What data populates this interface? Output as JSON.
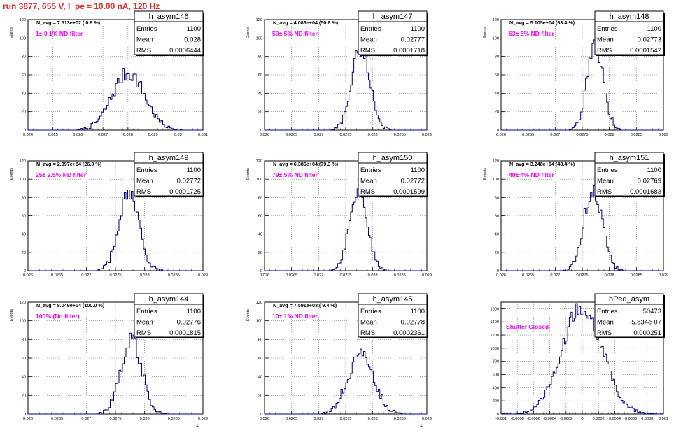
{
  "header": {
    "run_title": "run 3877,   655 V, I_pe ≈ 10.00 nA, 120 Hz"
  },
  "colors": {
    "histogram_line": "#000080",
    "annotation": "#ff00ff",
    "title": "#e8262a",
    "grid": "#000000"
  },
  "stat_labels": {
    "entries": "Entries",
    "mean": "Mean",
    "rms": "RMS"
  },
  "chart_data": [
    {
      "type": "bar",
      "name": "h_asym146",
      "ylabel": "Events",
      "xlabel": "",
      "navg": "N_avg = 7.513e+02 ( 0.9 %)",
      "note": "1± 0.1% ND filter",
      "entries": "1100",
      "mean": "0.028",
      "rms": "0.0006444",
      "xlim": [
        0.024,
        0.031
      ],
      "ylim": [
        0,
        120
      ],
      "xticks": [
        0.024,
        0.025,
        0.026,
        0.027,
        0.028,
        0.029,
        0.03,
        0.031
      ],
      "xtick_labels": [
        "0.024",
        "0.025",
        "0.026",
        "0.027",
        "0.028",
        "0.029",
        "0.03",
        "0.031"
      ],
      "yticks": [
        0,
        20,
        40,
        60,
        80,
        100,
        120
      ],
      "ytick_labels": [
        "0",
        "20",
        "40",
        "60",
        "80",
        "100",
        "120"
      ],
      "peak": 62,
      "mu": 0.02802,
      "sigma": 0.00065
    },
    {
      "type": "bar",
      "name": "h_asym147",
      "ylabel": "Events",
      "xlabel": "",
      "navg": "N_avg = 4.086e+04 (50.8 %)",
      "note": "50± 5% ND filter",
      "entries": "1100",
      "mean": "0.02777",
      "rms": "0.0001718",
      "xlim": [
        0.026,
        0.029
      ],
      "ylim": [
        0,
        120
      ],
      "xticks": [
        0.026,
        0.0265,
        0.027,
        0.0275,
        0.028,
        0.0285,
        0.029
      ],
      "xtick_labels": [
        "0.026",
        "0.0265",
        "0.027",
        "0.0275",
        "0.028",
        "0.0285",
        "0.029"
      ],
      "yticks": [
        0,
        20,
        40,
        60,
        80,
        100,
        120
      ],
      "ytick_labels": [
        "0",
        "20",
        "40",
        "60",
        "80",
        "100",
        "120"
      ],
      "peak": 90,
      "mu": 0.02778,
      "sigma": 0.00017
    },
    {
      "type": "bar",
      "name": "h_asym148",
      "ylabel": "Events",
      "xlabel": "",
      "navg": "N_avg = 5.105e+04 (63.4 %)",
      "note": "63± 5% ND filter",
      "entries": "1100",
      "mean": "0.02773",
      "rms": "0.0001542",
      "xlim": [
        0.026,
        0.029
      ],
      "ylim": [
        0,
        120
      ],
      "xticks": [
        0.026,
        0.0265,
        0.027,
        0.0275,
        0.028,
        0.0285,
        0.029
      ],
      "xtick_labels": [
        "0.026",
        "0.0265",
        "0.027",
        "0.0275",
        "0.028",
        "0.0285",
        "0.029"
      ],
      "yticks": [
        0,
        20,
        40,
        60,
        80,
        100,
        120
      ],
      "ytick_labels": [
        "0",
        "20",
        "40",
        "60",
        "80",
        "100",
        "120"
      ],
      "peak": 90,
      "mu": 0.02774,
      "sigma": 0.00015
    },
    {
      "type": "bar",
      "name": "h_asym149",
      "ylabel": "Events",
      "xlabel": "",
      "navg": "N_avg = 2.097e+04 (26.0 %)",
      "note": "25± 2.5% ND filter",
      "entries": "1100",
      "mean": "0.02772",
      "rms": "0.0001725",
      "xlim": [
        0.026,
        0.029
      ],
      "ylim": [
        0,
        120
      ],
      "xticks": [
        0.026,
        0.0265,
        0.027,
        0.0275,
        0.028,
        0.0285,
        0.029
      ],
      "xtick_labels": [
        "0.026",
        "0.0265",
        "0.027",
        "0.0275",
        "0.028",
        "0.0285",
        "0.029"
      ],
      "yticks": [
        0,
        20,
        40,
        60,
        80,
        100,
        120
      ],
      "ytick_labels": [
        "0",
        "20",
        "40",
        "60",
        "80",
        "100",
        "120"
      ],
      "peak": 82,
      "mu": 0.02773,
      "sigma": 0.00017
    },
    {
      "type": "bar",
      "name": "h_asym150",
      "ylabel": "Events",
      "xlabel": "",
      "navg": "N_avg = 6.386e+04 (79.3 %)",
      "note": "79± 5% ND filter",
      "entries": "1100",
      "mean": "0.02772",
      "rms": "0.0001599",
      "xlim": [
        0.026,
        0.029
      ],
      "ylim": [
        0,
        120
      ],
      "xticks": [
        0.026,
        0.0265,
        0.027,
        0.0275,
        0.028,
        0.0285,
        0.029
      ],
      "xtick_labels": [
        "0.026",
        "0.0265",
        "0.027",
        "0.0275",
        "0.028",
        "0.0285",
        "0.029"
      ],
      "yticks": [
        0,
        20,
        40,
        60,
        80,
        100,
        120
      ],
      "ytick_labels": [
        "0",
        "20",
        "40",
        "60",
        "80",
        "100",
        "120"
      ],
      "peak": 92,
      "mu": 0.02773,
      "sigma": 0.00016
    },
    {
      "type": "bar",
      "name": "h_asym151",
      "ylabel": "Events",
      "xlabel": "",
      "navg": "N_avg = 3.248e+04 (40.4 %)",
      "note": "40± 4% ND filter",
      "entries": "1100",
      "mean": "0.02769",
      "rms": "0.0001683",
      "xlim": [
        0.026,
        0.029
      ],
      "ylim": [
        0,
        120
      ],
      "xticks": [
        0.026,
        0.0265,
        0.027,
        0.0275,
        0.028,
        0.0285,
        0.029
      ],
      "xtick_labels": [
        "0.026",
        "0.0265",
        "0.027",
        "0.0275",
        "0.028",
        "0.0285",
        "0.029"
      ],
      "yticks": [
        0,
        20,
        40,
        60,
        80,
        100,
        120
      ],
      "ytick_labels": [
        "0",
        "20",
        "40",
        "60",
        "80",
        "100",
        "120"
      ],
      "peak": 90,
      "mu": 0.0277,
      "sigma": 0.00017
    },
    {
      "type": "bar",
      "name": "h_asym144",
      "ylabel": "Events",
      "xlabel": "A",
      "navg": "N_avg = 8.049e+04 (100.0 %)",
      "note": "100% (No filter)",
      "entries": "1100",
      "mean": "0.02776",
      "rms": "0.0001815",
      "xlim": [
        0.026,
        0.029
      ],
      "ylim": [
        0,
        120
      ],
      "xticks": [
        0.026,
        0.0265,
        0.027,
        0.0275,
        0.028,
        0.0285,
        0.029
      ],
      "xtick_labels": [
        "0.026",
        "0.0265",
        "0.027",
        "0.0275",
        "0.028",
        "0.0285",
        "0.029"
      ],
      "yticks": [
        0,
        20,
        40,
        60,
        80,
        100,
        120
      ],
      "ytick_labels": [
        "0",
        "20",
        "40",
        "60",
        "80",
        "100",
        "120"
      ],
      "peak": 80,
      "mu": 0.02777,
      "sigma": 0.00018
    },
    {
      "type": "bar",
      "name": "h_asym145",
      "ylabel": "Events",
      "xlabel": "A",
      "navg": "N_avg = 7.591e+03 ( 9.4 %)",
      "note": "10± 1% ND filter",
      "entries": "1100",
      "mean": "0.02778",
      "rms": "0.0002361",
      "xlim": [
        0.026,
        0.029
      ],
      "ylim": [
        0,
        120
      ],
      "xticks": [
        0.026,
        0.0265,
        0.027,
        0.0275,
        0.028,
        0.0285,
        0.029
      ],
      "xtick_labels": [
        "0.026",
        "0.0265",
        "0.027",
        "0.0275",
        "0.028",
        "0.0285",
        "0.029"
      ],
      "yticks": [
        0,
        20,
        40,
        60,
        80,
        100,
        120
      ],
      "ytick_labels": [
        "0",
        "20",
        "40",
        "60",
        "80",
        "100",
        "120"
      ],
      "peak": 65,
      "mu": 0.02778,
      "sigma": 0.00024
    },
    {
      "type": "bar",
      "name": "hPed_asym",
      "ylabel": "",
      "xlabel": "",
      "navg": "",
      "note": "Shutter Closed",
      "entries": "50473",
      "mean": "-5.834e-07",
      "rms": "0.000251",
      "xlim": [
        -0.001,
        0.001
      ],
      "ylim": [
        0,
        1700
      ],
      "xticks": [
        -0.001,
        -0.0008,
        -0.0006,
        -0.0004,
        -0.0002,
        0,
        0.0002,
        0.0004,
        0.0006,
        0.0008,
        0.001
      ],
      "xtick_labels": [
        "-0.001",
        "-0.0008",
        "-0.0006",
        "-0.0004",
        "-0.0002",
        "0",
        "0.0002",
        "0.0004",
        "0.0006",
        "0.0008",
        "0.001"
      ],
      "yticks": [
        0,
        200,
        400,
        600,
        800,
        1000,
        1200,
        1400,
        1600
      ],
      "ytick_labels": [
        "0",
        "200",
        "400",
        "600",
        "800",
        "1000",
        "1200",
        "1400",
        "1600"
      ],
      "peak": 1630,
      "mu": 0.0,
      "sigma": 0.00025
    }
  ]
}
